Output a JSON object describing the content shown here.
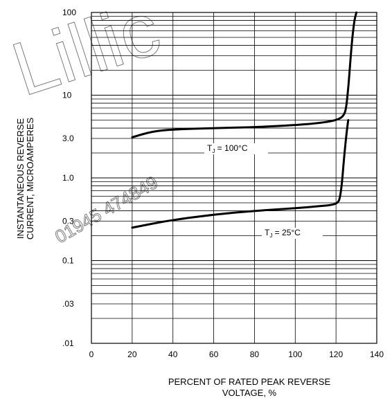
{
  "chart_data": {
    "type": "line",
    "xlabel_line1": "PERCENT OF RATED PEAK REVERSE",
    "xlabel_line2": "VOLTAGE, %",
    "ylabel_line1": "INSTANTANEOUS  REVERSE",
    "ylabel_line2": "CURRENT, MICROAMPERES",
    "x_ticks": [
      "0",
      "20",
      "40",
      "60",
      "80",
      "100",
      "120",
      "140"
    ],
    "y_ticks": [
      ".01",
      ".03",
      "0.1",
      "0.3",
      "1.0",
      "3.0",
      "10",
      "100"
    ],
    "y_tick_values": [
      0.01,
      0.03,
      0.1,
      0.3,
      1.0,
      3.0,
      10,
      100
    ],
    "xlim": [
      0,
      140
    ],
    "ylim": [
      0.01,
      100
    ],
    "yscale": "log",
    "grid": true,
    "series": [
      {
        "name": "TJ = 100°C",
        "label_main": "T",
        "label_sub": "J",
        "label_rest": " = 100°C",
        "x": [
          20,
          30,
          40,
          60,
          80,
          100,
          110,
          118,
          122,
          124,
          125,
          126,
          127,
          128,
          129,
          130
        ],
        "y": [
          3.1,
          3.65,
          3.85,
          4.0,
          4.1,
          4.35,
          4.55,
          4.85,
          5.2,
          5.8,
          7.0,
          12,
          25,
          50,
          80,
          100
        ]
      },
      {
        "name": "TJ = 25°C",
        "label_main": "T",
        "label_sub": "J",
        "label_rest": " = 25°C",
        "x": [
          20,
          30,
          40,
          60,
          80,
          100,
          110,
          118,
          121,
          122,
          123,
          124,
          125,
          126
        ],
        "y": [
          0.25,
          0.28,
          0.31,
          0.36,
          0.4,
          0.43,
          0.45,
          0.47,
          0.5,
          0.58,
          0.9,
          1.8,
          3.2,
          5.0
        ]
      }
    ]
  },
  "watermark": {
    "logo_text": "Lillic",
    "phone": "01945 474849"
  }
}
